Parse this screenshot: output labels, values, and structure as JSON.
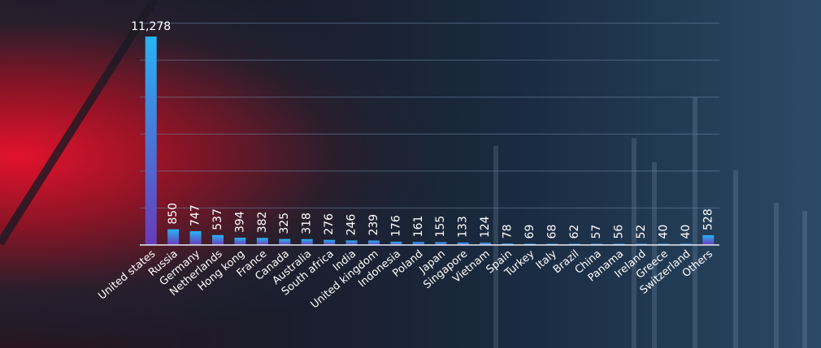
{
  "colors": {
    "bar_top": "#27b4f5",
    "bar_bottom": "#6a3ab8",
    "grid": "#6f8aa8",
    "text": "#ffffff",
    "background": "#162638",
    "accent_red": "#c8102e"
  },
  "chart_data": {
    "type": "bar",
    "title": "",
    "xlabel": "",
    "ylabel": "",
    "ylim": [
      0,
      11500
    ],
    "grid": true,
    "legend": "none",
    "categories": [
      "United states",
      "Russia",
      "Germany",
      "Netherlands",
      "Hong kong",
      "France",
      "Canada",
      "Australia",
      "South africa",
      "India",
      "United kingdom",
      "Indonesia",
      "Poland",
      "Japan",
      "Singapore",
      "Vietnam",
      "Spain",
      "Turkey",
      "Italy",
      "Brazil",
      "China",
      "Panama",
      "Ireland",
      "Greece",
      "Switzerland",
      "Others"
    ],
    "values": [
      11278,
      850,
      747,
      537,
      394,
      382,
      325,
      318,
      276,
      246,
      239,
      176,
      161,
      155,
      133,
      124,
      78,
      69,
      68,
      62,
      57,
      56,
      52,
      40,
      40,
      528
    ],
    "data_labels": [
      "11,278",
      "850",
      "747",
      "537",
      "394",
      "382",
      "325",
      "318",
      "276",
      "246",
      "239",
      "176",
      "161",
      "155",
      "133",
      "124",
      "78",
      "69",
      "68",
      "62",
      "57",
      "56",
      "52",
      "40",
      "40",
      "528"
    ]
  }
}
